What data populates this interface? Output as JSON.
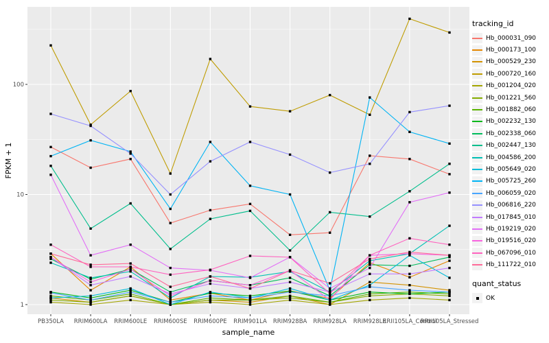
{
  "chart_data": {
    "type": "line",
    "xlabel": "sample_name",
    "ylabel": "FPKM + 1",
    "y_scale": "log10",
    "ylim": [
      1,
      490
    ],
    "y_ticks": [
      1,
      10,
      100
    ],
    "y_tick_labels": [
      "1",
      "10",
      "100"
    ],
    "y_minor_ticks": [
      3.162,
      31.62,
      316.2
    ],
    "grid": "on",
    "legend_position": "right",
    "point_shape": "black-square",
    "categories": [
      "PB350LA",
      "RRIM600LA",
      "RRIM600LE",
      "RRIM600SE",
      "RRIM600PE",
      "RRIM901LA",
      "RRIM928BA",
      "RRIM928LA",
      "RRIM928LE",
      "RRII105LA_Control",
      "RRII105LA_Stressed"
    ],
    "series": [
      {
        "name": "Hb_000031_090",
        "color": "#F8766D",
        "values": [
          27,
          17.5,
          21,
          5.5,
          7.2,
          8.2,
          4.3,
          4.5,
          22.5,
          21,
          15.3
        ]
      },
      {
        "name": "Hb_000173_100",
        "color": "#E58700",
        "values": [
          2.9,
          1.35,
          2.2,
          1.1,
          1.27,
          1.1,
          1.33,
          1.14,
          2.4,
          1.77,
          2.5
        ]
      },
      {
        "name": "Hb_000529_230",
        "color": "#D39200",
        "values": [
          1.15,
          1.05,
          1.2,
          1.0,
          1.1,
          1.05,
          1.2,
          1.0,
          1.6,
          1.5,
          1.35
        ]
      },
      {
        "name": "Hb_000720_160",
        "color": "#BF9C00",
        "values": [
          226,
          43,
          87,
          15.5,
          170,
          63,
          57,
          80,
          53,
          394,
          296
        ]
      },
      {
        "name": "Hb_001204_020",
        "color": "#A3A500",
        "values": [
          1.05,
          1.0,
          1.1,
          1.0,
          1.05,
          1.0,
          1.1,
          1.0,
          1.1,
          1.15,
          1.1
        ]
      },
      {
        "name": "Hb_001221_560",
        "color": "#85AD00",
        "values": [
          1.1,
          1.05,
          1.2,
          1.0,
          1.1,
          1.1,
          1.15,
          1.05,
          1.2,
          1.25,
          1.2
        ]
      },
      {
        "name": "Hb_001882_060",
        "color": "#5BB300",
        "values": [
          1.2,
          1.1,
          1.25,
          1.0,
          1.15,
          1.1,
          1.2,
          1.05,
          1.25,
          1.3,
          1.25
        ]
      },
      {
        "name": "Hb_002232_130",
        "color": "#00B81B",
        "values": [
          1.3,
          1.15,
          1.35,
          1.05,
          1.27,
          1.2,
          1.33,
          1.1,
          1.3,
          1.25,
          1.3
        ]
      },
      {
        "name": "Hb_002338_060",
        "color": "#00BC5C",
        "values": [
          2.6,
          1.7,
          2.1,
          1.3,
          1.65,
          1.5,
          1.75,
          1.2,
          2.3,
          2.25,
          2.7
        ]
      },
      {
        "name": "Hb_002447_130",
        "color": "#00BE8C",
        "values": [
          18.2,
          4.9,
          8.3,
          3.2,
          6.0,
          7.1,
          3.1,
          6.9,
          6.3,
          10.7,
          19
        ]
      },
      {
        "name": "Hb_004586_200",
        "color": "#00BFB4",
        "values": [
          2.4,
          1.75,
          2.0,
          1.15,
          1.8,
          1.77,
          2.0,
          1.3,
          2.5,
          2.9,
          5.2
        ]
      },
      {
        "name": "Hb_005649_020",
        "color": "#00BCD8",
        "values": [
          1.15,
          1.2,
          1.4,
          1.0,
          1.3,
          1.15,
          1.4,
          1.1,
          1.5,
          2.8,
          1.75
        ]
      },
      {
        "name": "Hb_005725_260",
        "color": "#00B4F4",
        "values": [
          22.3,
          31,
          24.5,
          7.4,
          30,
          12,
          10,
          1.35,
          76,
          37,
          29
        ]
      },
      {
        "name": "Hb_006059_020",
        "color": "#48A5FF",
        "values": [
          1.28,
          1.1,
          1.3,
          1.05,
          1.2,
          1.15,
          1.3,
          1.2,
          1.45,
          1.35,
          1.3
        ]
      },
      {
        "name": "Hb_006816_220",
        "color": "#9590FF",
        "values": [
          54,
          42,
          23.5,
          10,
          20,
          30,
          23,
          15.8,
          19,
          56,
          64
        ]
      },
      {
        "name": "Hb_017845_010",
        "color": "#C27CFF",
        "values": [
          2.7,
          1.5,
          1.8,
          1.25,
          1.55,
          1.4,
          1.6,
          1.3,
          1.9,
          1.9,
          2.15
        ]
      },
      {
        "name": "Hb_019219_020",
        "color": "#E26EF7",
        "values": [
          15.1,
          2.8,
          3.5,
          2.15,
          2.05,
          1.75,
          2.7,
          1.4,
          2.15,
          8.5,
          10.4
        ]
      },
      {
        "name": "Hb_019516_020",
        "color": "#F863DF",
        "values": [
          2.7,
          1.6,
          2.1,
          1.2,
          1.65,
          1.5,
          2.05,
          1.1,
          2.8,
          2.9,
          2.8
        ]
      },
      {
        "name": "Hb_067096_010",
        "color": "#FF62BF",
        "values": [
          3.5,
          2.2,
          2.2,
          1.87,
          2.07,
          2.77,
          2.69,
          1.26,
          2.8,
          4.0,
          3.5
        ]
      },
      {
        "name": "Hb_111722_010",
        "color": "#FF6A99",
        "values": [
          2.9,
          2.3,
          2.36,
          1.45,
          1.8,
          1.4,
          2.04,
          1.56,
          2.6,
          3.0,
          2.8
        ]
      }
    ]
  },
  "legend": {
    "title": "tracking_id"
  },
  "quant_legend": {
    "title": "quant_status",
    "items": [
      "OK"
    ]
  },
  "colors": {
    "panel_background": "#EBEBEB",
    "gridline": "#FFFFFF",
    "point": "#000000",
    "tick_text": "#4D4D4D",
    "tick_mark": "#333333",
    "legend_key_background": "#F2F2F2",
    "page_background": "#FFFFFF"
  }
}
